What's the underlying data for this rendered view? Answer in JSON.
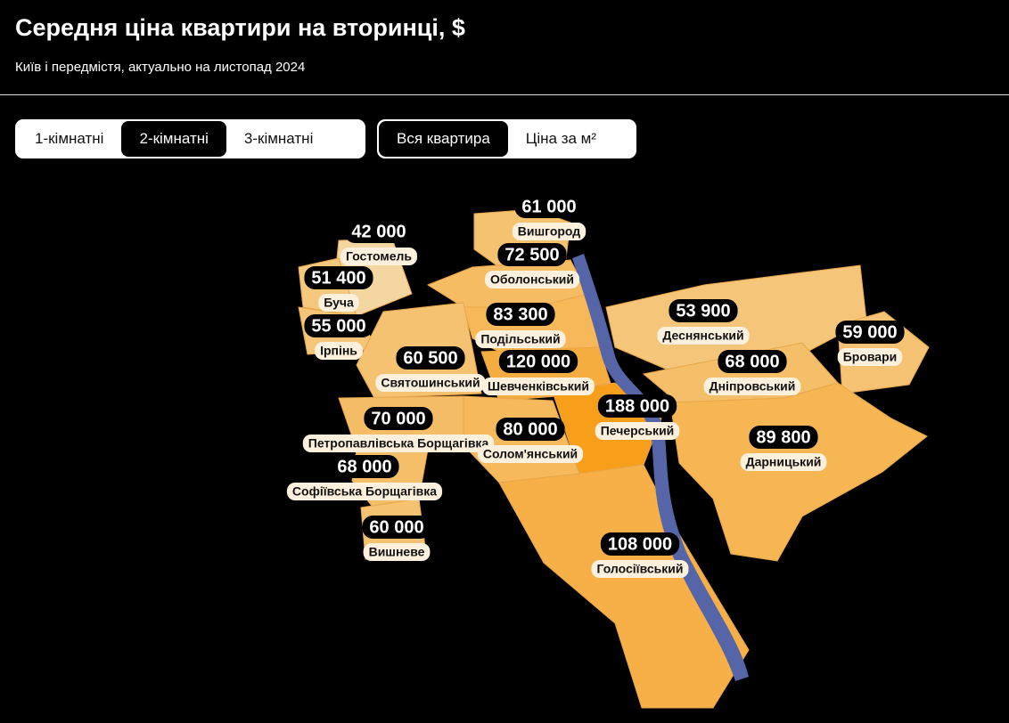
{
  "header": {
    "title": "Середня ціна квартири на вторинці, $",
    "subtitle": "Київ і передмістя, актуально на листопад 2024"
  },
  "tabs": {
    "rooms": {
      "options": [
        "1-кімнатні",
        "2-кімнатні",
        "3-кімнатні"
      ],
      "selected": 1
    },
    "mode": {
      "options": [
        "Вся квартира",
        "Ціна за м²"
      ],
      "selected": 0
    }
  },
  "regions": [
    {
      "name": "Вишгород",
      "price": {
        "value": 61000,
        "label": "61 000"
      }
    },
    {
      "name": "Гостомель",
      "price": {
        "value": 42000,
        "label": "42 000"
      }
    },
    {
      "name": "Буча",
      "price": {
        "value": 51400,
        "label": "51 400"
      }
    },
    {
      "name": "Ірпінь",
      "price": {
        "value": 55000,
        "label": "55 000"
      }
    },
    {
      "name": "Оболонський",
      "price": {
        "value": 72500,
        "label": "72 500"
      }
    },
    {
      "name": "Подільський",
      "price": {
        "value": 83300,
        "label": "83 300"
      }
    },
    {
      "name": "Святошинський",
      "price": {
        "value": 60500,
        "label": "60 500"
      }
    },
    {
      "name": "Шевченківський",
      "price": {
        "value": 120000,
        "label": "120 000"
      }
    },
    {
      "name": "Деснянський",
      "price": {
        "value": 53900,
        "label": "53 900"
      }
    },
    {
      "name": "Бровари",
      "price": {
        "value": 59000,
        "label": "59 000"
      }
    },
    {
      "name": "Дніпровський",
      "price": {
        "value": 68000,
        "label": "68 000"
      }
    },
    {
      "name": "Печерський",
      "price": {
        "value": 188000,
        "label": "188 000"
      }
    },
    {
      "name": "Петропавлівська Борщагівка",
      "price": {
        "value": 70000,
        "label": "70 000"
      }
    },
    {
      "name": "Солом'янський",
      "price": {
        "value": 80000,
        "label": "80 000"
      }
    },
    {
      "name": "Дарницький",
      "price": {
        "value": 89800,
        "label": "89 800"
      }
    },
    {
      "name": "Софіївська Борщагівка",
      "price": {
        "value": 68000,
        "label": "68 000"
      }
    },
    {
      "name": "Вишневе",
      "price": {
        "value": 60000,
        "label": "60 000"
      }
    },
    {
      "name": "Голосіївський",
      "price": {
        "value": 108000,
        "label": "108 000"
      }
    }
  ]
}
